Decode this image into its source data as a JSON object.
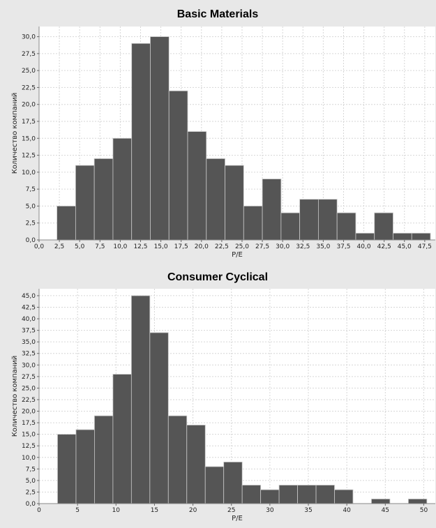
{
  "colors": {
    "background": "#e8e8e8",
    "plot_background": "#ffffff",
    "bar_fill": "#555555",
    "bar_stroke": "#c8c8c8",
    "grid": "#d6d6d6"
  },
  "chart_data": [
    {
      "type": "bar",
      "title": "Basic Materials",
      "xlabel": "P/E",
      "ylabel": "Количество компаний",
      "xlim": [
        0,
        48.8
      ],
      "ylim": [
        0,
        31.5
      ],
      "x_ticks": [
        0,
        2.5,
        5,
        7.5,
        10,
        12.5,
        15,
        17.5,
        20,
        22.5,
        25,
        27.5,
        30,
        32.5,
        35,
        37.5,
        40,
        42.5,
        45,
        47.5
      ],
      "x_tick_labels": [
        "0,0",
        "2,5",
        "5,0",
        "7,5",
        "10,0",
        "12,5",
        "15,0",
        "17,5",
        "20,0",
        "22,5",
        "25,0",
        "27,5",
        "30,0",
        "32,5",
        "35,0",
        "37,5",
        "40,0",
        "42,5",
        "45,0",
        "47,5"
      ],
      "y_ticks": [
        0,
        2.5,
        5,
        7.5,
        10,
        12.5,
        15,
        17.5,
        20,
        22.5,
        25,
        27.5,
        30
      ],
      "y_tick_labels": [
        "0,0",
        "2,5",
        "5,0",
        "7,5",
        "10,0",
        "12,5",
        "15,0",
        "17,5",
        "20,0",
        "22,5",
        "25,0",
        "27,5",
        "30,0"
      ],
      "bin_edges": [
        2.2,
        4.5,
        6.8,
        9.1,
        11.4,
        13.7,
        16.0,
        18.3,
        20.6,
        22.9,
        25.2,
        27.5,
        29.8,
        32.1,
        34.4,
        36.7,
        39.0,
        41.3,
        43.6,
        45.9,
        48.2
      ],
      "values": [
        5,
        11,
        12,
        15,
        29,
        30,
        22,
        16,
        12,
        11,
        5,
        9,
        4,
        6,
        6,
        4,
        1,
        4,
        1,
        1
      ],
      "grid": true
    },
    {
      "type": "bar",
      "title": "Consumer Cyclical",
      "xlabel": "P/E",
      "ylabel": "Количество компаний",
      "xlim": [
        0,
        51.5
      ],
      "ylim": [
        0,
        46.5
      ],
      "x_ticks": [
        0,
        5,
        10,
        15,
        20,
        25,
        30,
        35,
        40,
        45,
        50
      ],
      "x_tick_labels": [
        "0",
        "5",
        "10",
        "15",
        "20",
        "25",
        "30",
        "35",
        "40",
        "45",
        "50"
      ],
      "y_ticks": [
        0,
        2.5,
        5,
        7.5,
        10,
        12.5,
        15,
        17.5,
        20,
        22.5,
        25,
        27.5,
        30,
        32.5,
        35,
        37.5,
        40,
        42.5,
        45
      ],
      "y_tick_labels": [
        "0,0",
        "2,5",
        "5,0",
        "7,5",
        "10,0",
        "12,5",
        "15,0",
        "17,5",
        "20,0",
        "22,5",
        "25,0",
        "27,5",
        "30,0",
        "32,5",
        "35,0",
        "37,5",
        "40,0",
        "42,5",
        "45,0"
      ],
      "bin_edges": [
        2.4,
        4.8,
        7.2,
        9.6,
        12.0,
        14.4,
        16.8,
        19.2,
        21.6,
        24.0,
        26.4,
        28.8,
        31.2,
        33.6,
        36.0,
        38.4,
        40.8,
        43.2,
        45.6,
        48.0,
        50.4
      ],
      "values": [
        15,
        16,
        19,
        28,
        45,
        37,
        19,
        17,
        8,
        9,
        4,
        3,
        4,
        4,
        4,
        3,
        0,
        1,
        0,
        1
      ],
      "grid": true
    }
  ]
}
